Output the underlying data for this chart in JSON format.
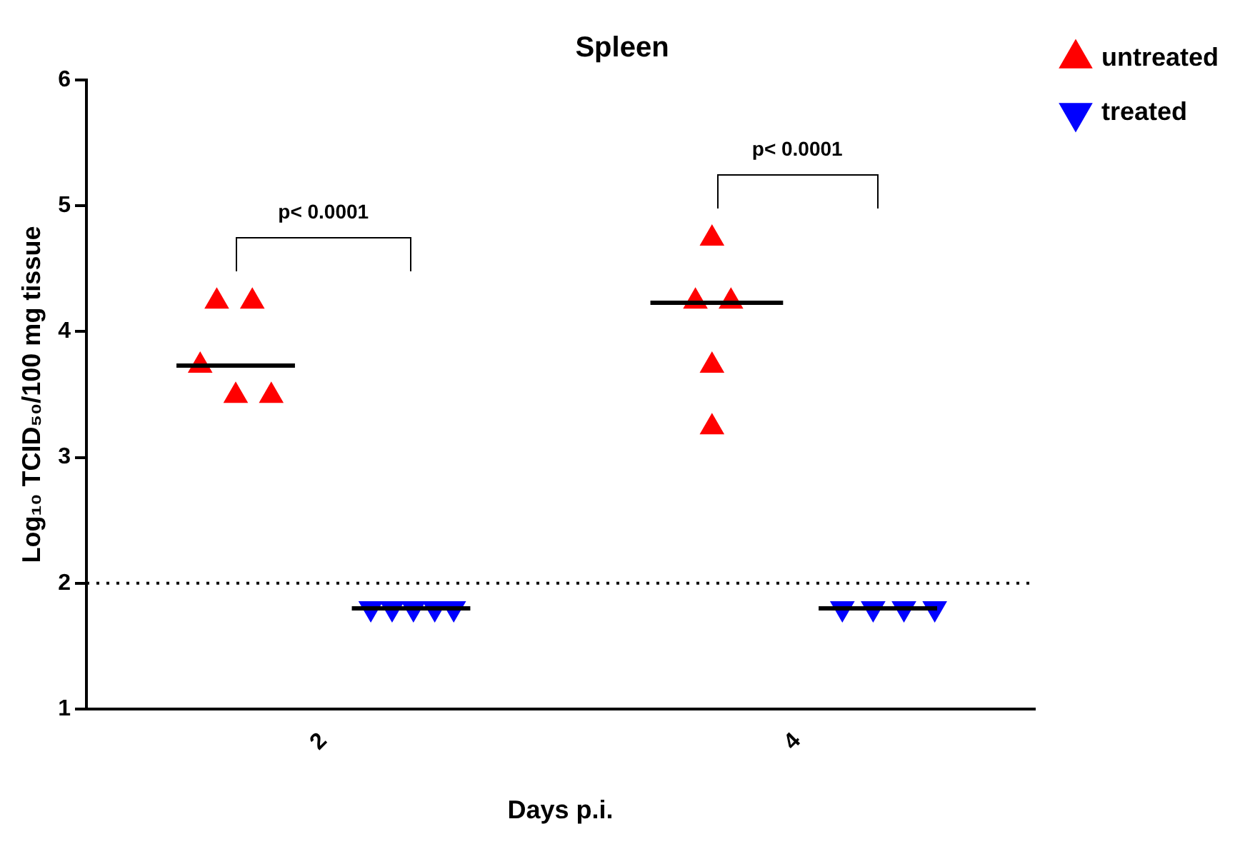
{
  "chart_data": {
    "type": "scatter",
    "title": "Spleen",
    "xlabel": "Days p.i.",
    "ylabel": "Log₁₀ TCID₅₀/100 mg tissue",
    "xlim": [
      1,
      5
    ],
    "xticks": [
      2,
      4
    ],
    "ylim": [
      1,
      6
    ],
    "yticks": [
      1,
      2,
      3,
      4,
      5,
      6
    ],
    "grid": false,
    "legend": "top right",
    "series": [
      {
        "name": "untreated",
        "color": "#ff0000",
        "marker": "triangle",
        "x": [
          1.48,
          1.55,
          1.63,
          1.7,
          1.78,
          3.57,
          3.64,
          3.72,
          3.64,
          3.64
        ],
        "values": [
          3.73,
          4.24,
          3.49,
          4.24,
          3.49,
          4.24,
          4.74,
          4.24,
          3.73,
          3.24
        ]
      },
      {
        "name": "treated",
        "color": "#0000ff",
        "marker": "triangle",
        "x": [
          2.2,
          2.29,
          2.38,
          2.47,
          2.55,
          4.19,
          4.32,
          4.45,
          4.58
        ],
        "values": [
          1.8,
          1.8,
          1.8,
          1.8,
          1.8,
          1.8,
          1.8,
          1.8,
          1.8
        ]
      },
      {
        "type": "line",
        "color": "#000000",
        "x": [
          1.38,
          1.88
        ],
        "values": [
          3.73,
          3.73
        ]
      },
      {
        "type": "line",
        "color": "#000000",
        "x": [
          2.12,
          2.62
        ],
        "values": [
          1.8,
          1.8
        ]
      },
      {
        "type": "line",
        "color": "#000000",
        "x": [
          3.38,
          3.94
        ],
        "values": [
          4.23,
          4.23
        ]
      },
      {
        "type": "line",
        "color": "#000000",
        "x": [
          4.09,
          4.59
        ],
        "values": [
          1.8,
          1.8
        ]
      }
    ],
    "ref_lines": [
      {
        "axis": "y",
        "value": 2,
        "line_style": "dotted",
        "color": "#000000"
      }
    ],
    "annotations": [
      "p< 0.0001",
      "p< 0.0001"
    ]
  }
}
